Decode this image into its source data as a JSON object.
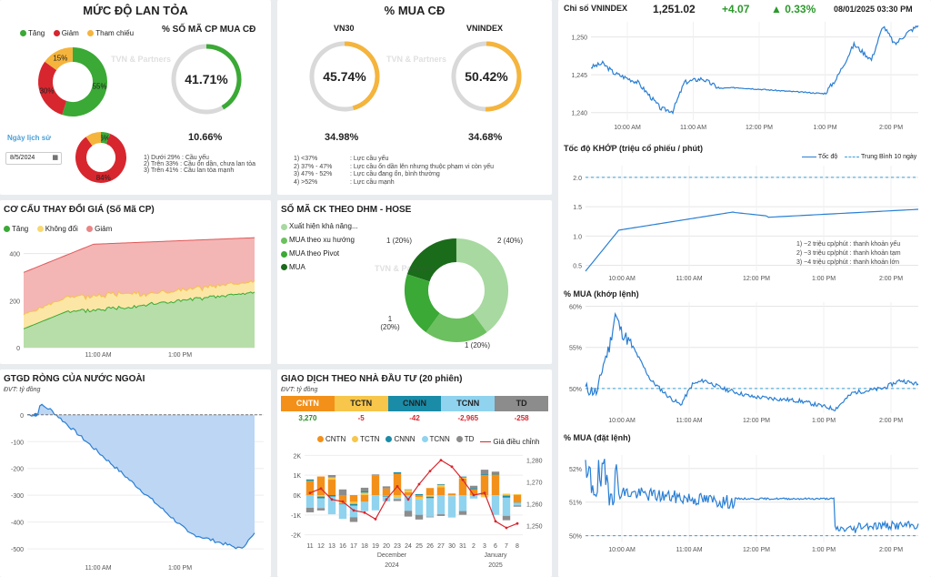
{
  "breadth": {
    "title": "MỨC ĐỘ LAN TỎA",
    "legend": [
      "Tăng",
      "Giảm",
      "Tham chiếu"
    ],
    "pie": [
      {
        "label": "55%",
        "value": 55,
        "color": "#3aa935"
      },
      {
        "label": "30%",
        "value": 30,
        "color": "#d7262e"
      },
      {
        "label": "15%",
        "value": 15,
        "color": "#f5b43c"
      }
    ],
    "buy_title": "% SỐ MÃ CP MUA CĐ",
    "buy_value": "41.71%",
    "buy_pct": 41.71,
    "history_label": "Ngày lịch sử",
    "history_date": "8/5/2024",
    "history_pie": [
      {
        "label": "6%",
        "value": 6,
        "color": "#3aa935"
      },
      {
        "label": "84%",
        "value": 84,
        "color": "#d7262e"
      },
      {
        "label": "",
        "value": 10,
        "color": "#f5b43c"
      }
    ],
    "history_value": "10.66%",
    "notes": [
      "1) Dưới 29% : Cầu yếu",
      "2) Trên 33% : Cầu ổn dần, chưa lan tỏa",
      "3) Trên 41% : Cầu lan tỏa mạnh"
    ]
  },
  "buy_cd": {
    "title": "% MUA CĐ",
    "vn30_label": "VN30",
    "vn30_value": "45.74%",
    "vn30_pct": 45.74,
    "vnindex_label": "VNINDEX",
    "vnindex_value": "50.42%",
    "vnindex_pct": 50.42,
    "vn30_hist": "34.98%",
    "vnindex_hist": "34.68%",
    "notes_left": [
      "1)  <37%",
      "2)  37% - 47%",
      "3)  47% - 52%",
      "4)  >52%"
    ],
    "notes_right": [
      ": Lực cầu yếu",
      ": Lực cầu ổn dần lên nhưng thuộc phạm vi còn yếu",
      ": Lực cầu đang ổn, bình thường",
      ": Lực cầu mạnh"
    ]
  },
  "vnindex": {
    "title": "Chỉ số VNINDEX",
    "value": "1,251.02",
    "change": "+4.07",
    "change_pct": "0.33%",
    "arrow": "▲",
    "datetime": "08/01/2025 03:30 PM",
    "yticks": [
      "1,250",
      "1,245",
      "1,240"
    ],
    "xticks": [
      "10:00 AM",
      "11:00 AM",
      "12:00 PM",
      "1:00 PM",
      "2:00 PM"
    ]
  },
  "speed": {
    "title": "Tốc độ KHỚP (triệu cổ phiếu / phút)",
    "legend_speed": "Tốc độ",
    "legend_avg": "Trung Bình 10 ngày",
    "yticks": [
      "2.0",
      "1.5",
      "1.0",
      "0.5"
    ],
    "xticks": [
      "10:00 AM",
      "11:00 AM",
      "12:00 PM",
      "1:00 PM",
      "2:00 PM"
    ],
    "notes": [
      "1)  ~2 triệu cp/phút : thanh khoản yếu",
      "2)  ~3 triệu cp/phút : thanh khoản tạm",
      "3)  ~4 triệu cp/phút : thanh khoản lớn"
    ]
  },
  "mua_khop": {
    "title": "% MUA (khớp lệnh)",
    "yticks": [
      "60%",
      "55%",
      "50%"
    ],
    "xticks": [
      "10:00 AM",
      "11:00 AM",
      "12:00 PM",
      "1:00 PM",
      "2:00 PM"
    ]
  },
  "mua_dat": {
    "title": "% MUA (đặt lệnh)",
    "yticks": [
      "52%",
      "51%",
      "50%"
    ],
    "xticks": [
      "10:00 AM",
      "11:00 AM",
      "12:00 PM",
      "1:00 PM",
      "2:00 PM"
    ]
  },
  "structure": {
    "title": "CƠ CẤU THAY ĐỔI GIÁ (Số Mã CP)",
    "legend": [
      "Tăng",
      "Không đổi",
      "Giảm"
    ],
    "yticks": [
      "400",
      "200",
      "0"
    ],
    "xticks": [
      "11:00 AM",
      "1:00 PM"
    ]
  },
  "dhm": {
    "title": "SỐ MÃ CK THEO DHM - HOSE",
    "legend": [
      "Xuất hiện khả năng...",
      "MUA theo xu hướng",
      "MUA theo Pivot",
      "MUA"
    ],
    "labels": [
      "2 (40%)",
      "1 (20%)",
      "1 (20%)",
      "1 (20%)"
    ]
  },
  "foreign": {
    "title": "GTGD RÒNG CỦA NƯỚC NGOÀI",
    "unit": "ĐVT: tỷ đồng",
    "yticks": [
      "0",
      "-100",
      "-200",
      "-300",
      "-400",
      "-500"
    ],
    "xticks": [
      "11:00 AM",
      "1:00 PM"
    ]
  },
  "investor": {
    "title": "GIAO DỊCH THEO NHÀ ĐẦU TƯ (20 phiên)",
    "unit": "ĐVT: tỷ đồng",
    "tabs": [
      {
        "name": "CNTN",
        "value": "3,270",
        "color": "#f39019",
        "valcolor": "#2b8a2b"
      },
      {
        "name": "TCTN",
        "value": "-5",
        "color": "#f7c64a",
        "valcolor": "#d7262e"
      },
      {
        "name": "CNNN",
        "value": "-42",
        "color": "#1a8ca8",
        "valcolor": "#d7262e"
      },
      {
        "name": "TCNN",
        "value": "-2,965",
        "color": "#8fd3ef",
        "valcolor": "#d7262e"
      },
      {
        "name": "TD",
        "value": "-258",
        "color": "#8c8c8c",
        "valcolor": "#d7262e"
      }
    ],
    "legend": [
      "CNTN",
      "TCTN",
      "CNNN",
      "TCNN",
      "TD",
      "Giá điều chỉnh"
    ],
    "yticks_left": [
      "2K",
      "1K",
      "0K",
      "-1K",
      "-2K"
    ],
    "yticks_right": [
      "1,280",
      "1,270",
      "1,260",
      "1,250"
    ],
    "days": [
      "11",
      "12",
      "13",
      "16",
      "17",
      "18",
      "19",
      "20",
      "23",
      "24",
      "25",
      "26",
      "27",
      "30",
      "31",
      "2",
      "3",
      "6",
      "7",
      "8"
    ],
    "month1": "December",
    "year1": "2024",
    "month2": "January",
    "year2": "2025"
  },
  "watermark": "TVN & Partners"
}
